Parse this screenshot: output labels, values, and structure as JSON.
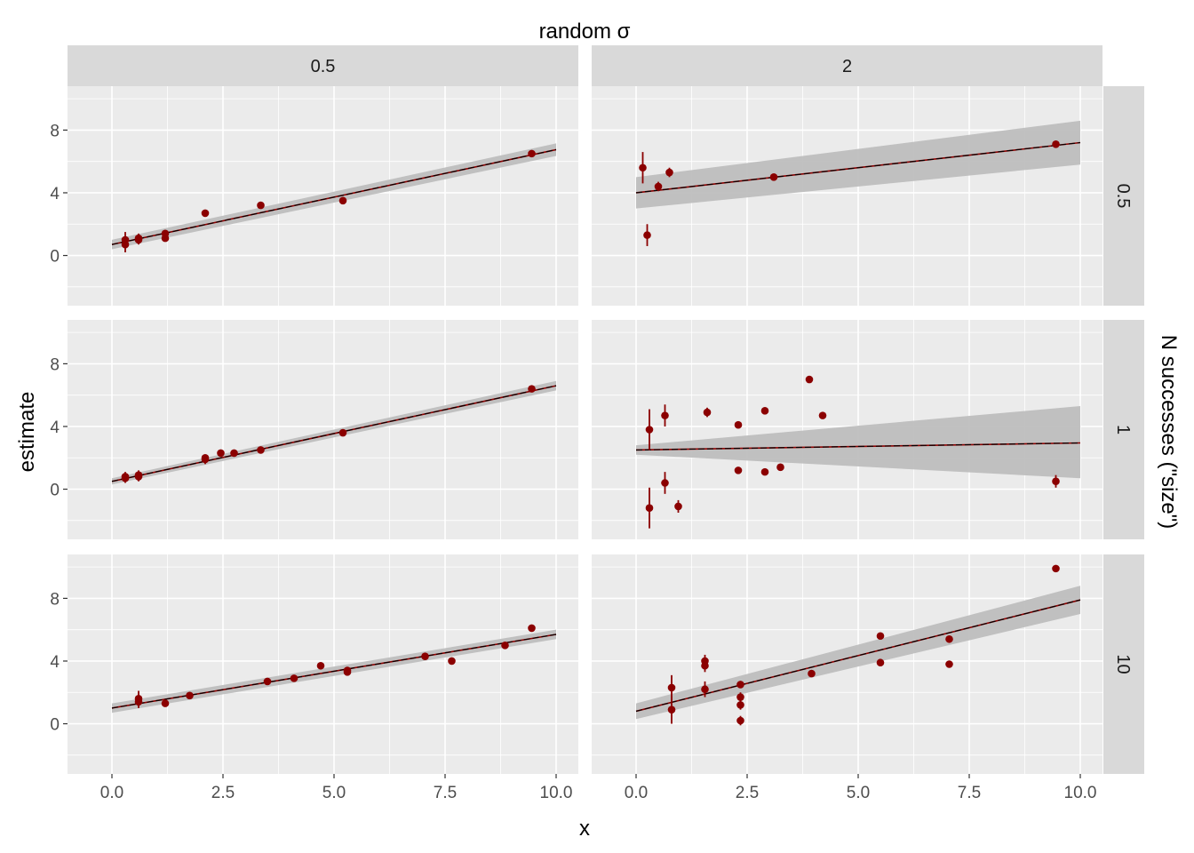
{
  "labels": {
    "top_title": "random σ",
    "right_title": "N successes (\"size\")",
    "x_axis": "x",
    "y_axis": "estimate"
  },
  "facets": {
    "columns": [
      "0.5",
      "2"
    ],
    "rows": [
      "0.5",
      "1",
      "10"
    ]
  },
  "axes": {
    "x_ticks": [
      "0.0",
      "2.5",
      "5.0",
      "7.5",
      "10.0"
    ],
    "x_tick_values": [
      0,
      2.5,
      5,
      7.5,
      10
    ],
    "y_ticks": [
      "0",
      "4",
      "8"
    ],
    "y_tick_values": [
      0,
      4,
      8
    ],
    "xlim": [
      -1.0,
      10.5
    ],
    "ylim": [
      -3.2,
      10.8
    ]
  },
  "colors": {
    "panel_bg": "#ebebeb",
    "grid": "#ffffff",
    "strip_bg": "#d9d9d9",
    "points": "#8b0000",
    "fit_line": "#000000",
    "ribbon": "#bebebe",
    "text": "#4d4d4d"
  },
  "chart_data": {
    "type": "scatter",
    "title": "",
    "xlabel": "x",
    "ylabel": "estimate",
    "grid": true,
    "panels": [
      {
        "col": "0.5",
        "row": "0.5",
        "fit": {
          "x": [
            0,
            10
          ],
          "y": [
            0.7,
            6.75
          ],
          "band_lower": [
            0.4,
            6.35
          ],
          "band_upper": [
            1.0,
            7.15
          ]
        },
        "points": [
          {
            "x": 0.3,
            "y": 1.0,
            "lo": 0.5,
            "hi": 1.5
          },
          {
            "x": 0.3,
            "y": 0.7,
            "lo": 0.2,
            "hi": 1.2
          },
          {
            "x": 0.6,
            "y": 1.0,
            "lo": 0.7,
            "hi": 1.3
          },
          {
            "x": 0.6,
            "y": 1.1,
            "lo": 0.8,
            "hi": 1.4
          },
          {
            "x": 1.2,
            "y": 1.4,
            "lo": 1.2,
            "hi": 1.6
          },
          {
            "x": 1.2,
            "y": 1.1,
            "lo": 0.9,
            "hi": 1.3
          },
          {
            "x": 2.1,
            "y": 2.7,
            "lo": 2.5,
            "hi": 2.9
          },
          {
            "x": 3.35,
            "y": 3.2,
            "lo": 3.0,
            "hi": 3.4
          },
          {
            "x": 5.2,
            "y": 3.5,
            "lo": 3.3,
            "hi": 3.7
          },
          {
            "x": 9.45,
            "y": 6.5,
            "lo": 6.3,
            "hi": 6.7
          }
        ]
      },
      {
        "col": "2",
        "row": "0.5",
        "fit": {
          "x": [
            0,
            10
          ],
          "y": [
            4.0,
            7.2
          ],
          "band_lower": [
            3.0,
            5.8
          ],
          "band_upper": [
            5.0,
            8.6
          ]
        },
        "points": [
          {
            "x": 0.15,
            "y": 5.6,
            "lo": 4.6,
            "hi": 6.6
          },
          {
            "x": 0.25,
            "y": 1.3,
            "lo": 0.6,
            "hi": 2.0
          },
          {
            "x": 0.5,
            "y": 4.4,
            "lo": 4.1,
            "hi": 4.7
          },
          {
            "x": 0.75,
            "y": 5.3,
            "lo": 5.0,
            "hi": 5.6
          },
          {
            "x": 3.1,
            "y": 5.0,
            "lo": 4.8,
            "hi": 5.2
          },
          {
            "x": 9.45,
            "y": 7.1,
            "lo": 6.9,
            "hi": 7.3
          }
        ]
      },
      {
        "col": "0.5",
        "row": "1",
        "fit": {
          "x": [
            0,
            10
          ],
          "y": [
            0.5,
            6.6
          ],
          "band_lower": [
            0.3,
            6.3
          ],
          "band_upper": [
            0.7,
            6.9
          ]
        },
        "points": [
          {
            "x": 0.3,
            "y": 0.8,
            "lo": 0.5,
            "hi": 1.1
          },
          {
            "x": 0.3,
            "y": 0.7,
            "lo": 0.4,
            "hi": 1.0
          },
          {
            "x": 0.6,
            "y": 0.9,
            "lo": 0.6,
            "hi": 1.2
          },
          {
            "x": 0.6,
            "y": 0.8,
            "lo": 0.5,
            "hi": 1.1
          },
          {
            "x": 2.1,
            "y": 1.9,
            "lo": 1.6,
            "hi": 2.2
          },
          {
            "x": 2.1,
            "y": 2.0,
            "lo": 1.8,
            "hi": 2.2
          },
          {
            "x": 2.45,
            "y": 2.3,
            "lo": 2.1,
            "hi": 2.5
          },
          {
            "x": 2.75,
            "y": 2.3,
            "lo": 2.1,
            "hi": 2.5
          },
          {
            "x": 3.35,
            "y": 2.5,
            "lo": 2.3,
            "hi": 2.7
          },
          {
            "x": 5.2,
            "y": 3.6,
            "lo": 3.4,
            "hi": 3.8
          },
          {
            "x": 9.45,
            "y": 6.4,
            "lo": 6.2,
            "hi": 6.6
          }
        ]
      },
      {
        "col": "2",
        "row": "1",
        "fit": {
          "x": [
            0,
            10
          ],
          "y": [
            2.5,
            2.95
          ],
          "band_lower": [
            2.2,
            0.7
          ],
          "band_upper": [
            2.8,
            5.3
          ]
        },
        "points": [
          {
            "x": 0.3,
            "y": 3.8,
            "lo": 2.5,
            "hi": 5.1
          },
          {
            "x": 0.3,
            "y": -1.2,
            "lo": -2.5,
            "hi": 0.1
          },
          {
            "x": 0.65,
            "y": 4.7,
            "lo": 4.0,
            "hi": 5.4
          },
          {
            "x": 0.65,
            "y": 0.4,
            "lo": -0.3,
            "hi": 1.1
          },
          {
            "x": 0.95,
            "y": -1.1,
            "lo": -1.5,
            "hi": -0.7
          },
          {
            "x": 1.6,
            "y": 4.9,
            "lo": 4.6,
            "hi": 5.2
          },
          {
            "x": 2.3,
            "y": 4.1,
            "lo": 3.9,
            "hi": 4.3
          },
          {
            "x": 2.3,
            "y": 1.2,
            "lo": 1.0,
            "hi": 1.4
          },
          {
            "x": 2.9,
            "y": 5.0,
            "lo": 4.8,
            "hi": 5.2
          },
          {
            "x": 2.9,
            "y": 1.1,
            "lo": 0.9,
            "hi": 1.3
          },
          {
            "x": 3.25,
            "y": 1.4,
            "lo": 1.2,
            "hi": 1.6
          },
          {
            "x": 3.9,
            "y": 7.0,
            "lo": 6.8,
            "hi": 7.2
          },
          {
            "x": 4.2,
            "y": 4.7,
            "lo": 4.5,
            "hi": 4.9
          },
          {
            "x": 9.45,
            "y": 0.5,
            "lo": 0.1,
            "hi": 0.9
          }
        ]
      },
      {
        "col": "0.5",
        "row": "10",
        "fit": {
          "x": [
            0,
            10
          ],
          "y": [
            1.0,
            5.7
          ],
          "band_lower": [
            0.7,
            5.4
          ],
          "band_upper": [
            1.3,
            6.0
          ]
        },
        "points": [
          {
            "x": 0.6,
            "y": 1.6,
            "lo": 1.1,
            "hi": 2.1
          },
          {
            "x": 0.6,
            "y": 1.4,
            "lo": 1.0,
            "hi": 1.8
          },
          {
            "x": 1.2,
            "y": 1.3,
            "lo": 1.1,
            "hi": 1.5
          },
          {
            "x": 1.75,
            "y": 1.8,
            "lo": 1.6,
            "hi": 2.0
          },
          {
            "x": 3.5,
            "y": 2.7,
            "lo": 2.5,
            "hi": 2.9
          },
          {
            "x": 4.1,
            "y": 2.9,
            "lo": 2.7,
            "hi": 3.1
          },
          {
            "x": 4.7,
            "y": 3.7,
            "lo": 3.5,
            "hi": 3.9
          },
          {
            "x": 5.3,
            "y": 3.3,
            "lo": 3.1,
            "hi": 3.5
          },
          {
            "x": 5.3,
            "y": 3.4,
            "lo": 3.2,
            "hi": 3.6
          },
          {
            "x": 7.05,
            "y": 4.3,
            "lo": 4.1,
            "hi": 4.5
          },
          {
            "x": 7.65,
            "y": 4.0,
            "lo": 3.8,
            "hi": 4.2
          },
          {
            "x": 8.85,
            "y": 5.0,
            "lo": 4.8,
            "hi": 5.2
          },
          {
            "x": 9.45,
            "y": 6.1,
            "lo": 5.9,
            "hi": 6.3
          }
        ]
      },
      {
        "col": "2",
        "row": "10",
        "fit": {
          "x": [
            0,
            10
          ],
          "y": [
            0.8,
            7.9
          ],
          "band_lower": [
            0.3,
            7.0
          ],
          "band_upper": [
            1.3,
            8.8
          ]
        },
        "points": [
          {
            "x": 0.8,
            "y": 2.3,
            "lo": 1.5,
            "hi": 3.1
          },
          {
            "x": 0.8,
            "y": 0.9,
            "lo": 0.0,
            "hi": 1.8
          },
          {
            "x": 1.55,
            "y": 4.0,
            "lo": 3.6,
            "hi": 4.4
          },
          {
            "x": 1.55,
            "y": 3.7,
            "lo": 3.3,
            "hi": 4.1
          },
          {
            "x": 1.55,
            "y": 2.2,
            "lo": 1.7,
            "hi": 2.7
          },
          {
            "x": 2.35,
            "y": 2.5,
            "lo": 2.3,
            "hi": 2.7
          },
          {
            "x": 2.35,
            "y": 1.7,
            "lo": 1.4,
            "hi": 2.0
          },
          {
            "x": 2.35,
            "y": 1.2,
            "lo": 0.9,
            "hi": 1.5
          },
          {
            "x": 2.35,
            "y": 0.2,
            "lo": -0.1,
            "hi": 0.5
          },
          {
            "x": 3.95,
            "y": 3.2,
            "lo": 3.0,
            "hi": 3.4
          },
          {
            "x": 5.5,
            "y": 5.6,
            "lo": 5.4,
            "hi": 5.8
          },
          {
            "x": 5.5,
            "y": 3.9,
            "lo": 3.7,
            "hi": 4.1
          },
          {
            "x": 7.05,
            "y": 5.4,
            "lo": 5.2,
            "hi": 5.6
          },
          {
            "x": 7.05,
            "y": 3.8,
            "lo": 3.6,
            "hi": 4.0
          },
          {
            "x": 9.45,
            "y": 9.9,
            "lo": 9.7,
            "hi": 10.1
          }
        ]
      }
    ]
  }
}
